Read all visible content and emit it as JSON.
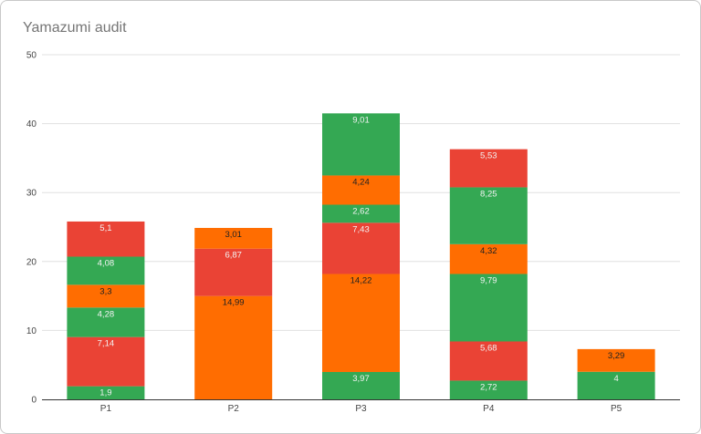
{
  "chart_data": {
    "type": "bar",
    "stacked": true,
    "title": "Yamazumi audit",
    "xlabel": "",
    "ylabel": "",
    "ylim": [
      0,
      50
    ],
    "yticks": [
      0,
      10,
      20,
      30,
      40,
      50
    ],
    "grid": true,
    "legend": "none",
    "categories": [
      "P1",
      "P2",
      "P3",
      "P4",
      "P5"
    ],
    "colors": {
      "green": "#34a853",
      "red": "#ea4335",
      "orange": "#ff6d01"
    },
    "stacks": [
      [
        {
          "value": 1.9,
          "color": "green"
        },
        {
          "value": 7.14,
          "color": "red"
        },
        {
          "value": 4.28,
          "color": "green"
        },
        {
          "value": 3.3,
          "color": "orange"
        },
        {
          "value": 4.08,
          "color": "green"
        },
        {
          "value": 5.1,
          "color": "red"
        }
      ],
      [
        {
          "value": 14.99,
          "color": "orange"
        },
        {
          "value": 6.87,
          "color": "red"
        },
        {
          "value": 3.01,
          "color": "orange"
        }
      ],
      [
        {
          "value": 3.97,
          "color": "green"
        },
        {
          "value": 14.22,
          "color": "orange"
        },
        {
          "value": 7.43,
          "color": "red"
        },
        {
          "value": 2.62,
          "color": "green"
        },
        {
          "value": 4.24,
          "color": "orange"
        },
        {
          "value": 9.01,
          "color": "green"
        }
      ],
      [
        {
          "value": 2.72,
          "color": "green"
        },
        {
          "value": 5.68,
          "color": "red"
        },
        {
          "value": 9.79,
          "color": "green"
        },
        {
          "value": 4.32,
          "color": "orange"
        },
        {
          "value": 8.25,
          "color": "green"
        },
        {
          "value": 5.53,
          "color": "red"
        }
      ],
      [
        {
          "value": 4,
          "color": "green"
        },
        {
          "value": 3.29,
          "color": "orange"
        }
      ]
    ]
  }
}
